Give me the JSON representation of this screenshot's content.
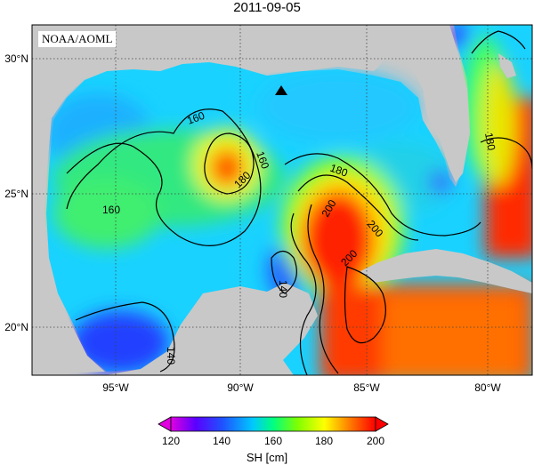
{
  "title": "2011-09-05",
  "badge": "NOAA/AOML",
  "lat_ticks": [
    "30°N",
    "25°N",
    "20°N"
  ],
  "lon_ticks": [
    "95°W",
    "90°W",
    "85°W",
    "80°W"
  ],
  "contour_labels": [
    "160",
    "160",
    "160",
    "180",
    "180",
    "180",
    "200",
    "200",
    "200",
    "140",
    "140"
  ],
  "colorbar": {
    "ticks": [
      "120",
      "140",
      "160",
      "180",
      "200"
    ],
    "label": "SH [cm]",
    "range": [
      120,
      200
    ]
  },
  "marker": "triangle",
  "colors": {
    "land": "#c8c8c8",
    "background": "#ffffff"
  }
}
